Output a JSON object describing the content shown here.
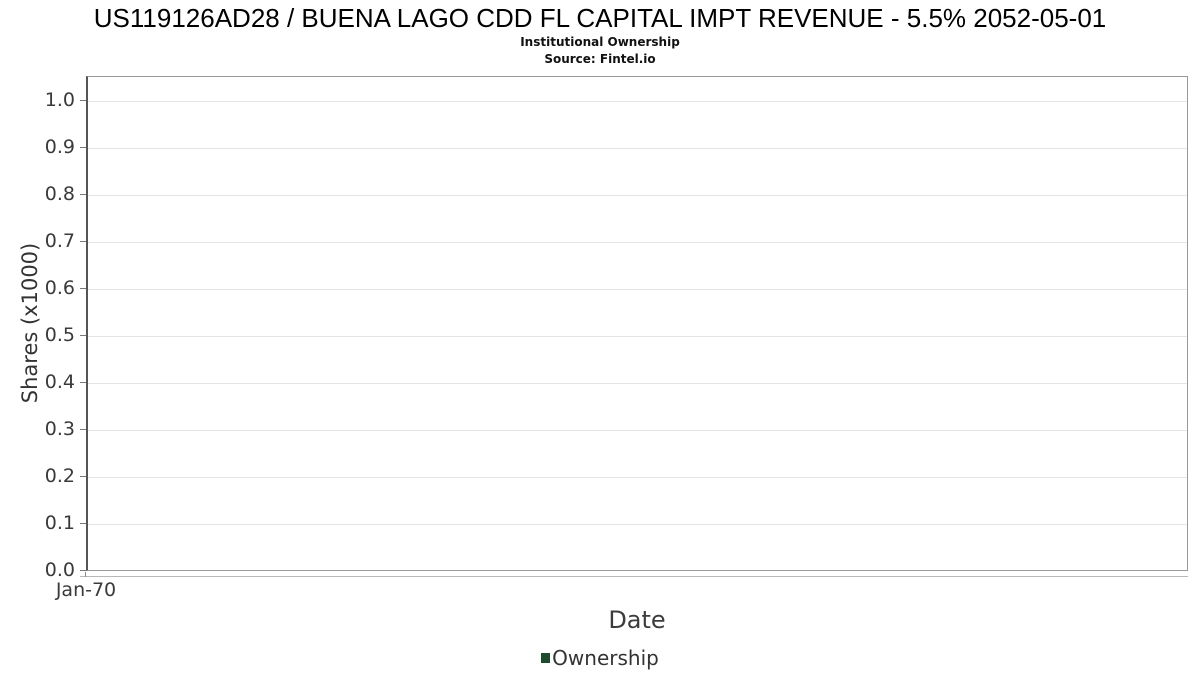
{
  "header": {
    "title": "US119126AD28 / BUENA LAGO CDD FL CAPITAL IMPT REVENUE - 5.5% 2052-05-01",
    "subtitle": "Institutional Ownership",
    "source": "Source: Fintel.io"
  },
  "axes": {
    "x_label": "Date",
    "y_label": "Shares (x1000)"
  },
  "legend": {
    "items": [
      {
        "label": "Ownership",
        "color": "#1d4b2c"
      }
    ]
  },
  "chart_data": {
    "type": "line",
    "title": "US119126AD28 / BUENA LAGO CDD FL CAPITAL IMPT REVENUE - 5.5% 2052-05-01",
    "subtitle": "Institutional Ownership",
    "source": "Source: Fintel.io",
    "xlabel": "Date",
    "ylabel": "Shares (x1000)",
    "ylim": [
      0.0,
      1.05
    ],
    "yticks": [
      0.0,
      0.1,
      0.2,
      0.3,
      0.4,
      0.5,
      0.6,
      0.7,
      0.8,
      0.9,
      1.0
    ],
    "ytick_labels": [
      "0.0",
      "0.1",
      "0.2",
      "0.3",
      "0.4",
      "0.5",
      "0.6",
      "0.7",
      "0.8",
      "0.9",
      "1.0"
    ],
    "xticks": [
      {
        "label": "Jan-70",
        "position": 0
      }
    ],
    "grid": true,
    "legend_position": "bottom",
    "series": [
      {
        "name": "Ownership",
        "color": "#1d4b2c",
        "x": [],
        "values": []
      }
    ]
  }
}
